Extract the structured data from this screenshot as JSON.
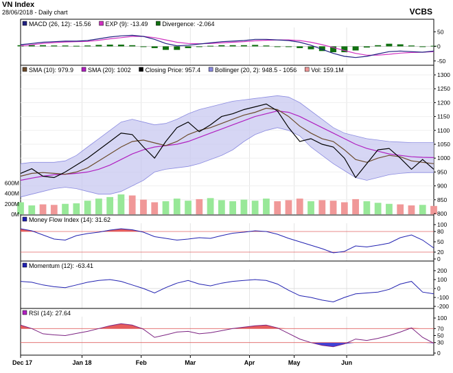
{
  "header": {
    "title": "VN Index",
    "subtitle": "28/06/2018 - Daily chart",
    "brand": "VCBS"
  },
  "colors": {
    "sma10": "#6b4a2b",
    "sma20": "#b020c0",
    "close": "#000000",
    "bollinger_fill": "#c8c8f0",
    "bollinger_line": "#8a8ae0",
    "volume_up": "#98e898",
    "volume_down": "#f09898",
    "macd": "#202080",
    "exp": "#d030c0",
    "divergence": "#107010",
    "indicator_line": "#2020b0",
    "overbought_fill": "#e04040",
    "oversold_fill": "#2020d0",
    "ref_line": "#e06060"
  },
  "chart_data": [
    {
      "id": "macd",
      "type": "line",
      "legend": [
        {
          "label": "MACD (26, 12): -15.56",
          "color": "#202080"
        },
        {
          "label": "EXP (9): -13.49",
          "color": "#d030c0"
        },
        {
          "label": "Divergence: -2.064",
          "color": "#107010"
        }
      ],
      "ylim": [
        -60,
        60
      ],
      "yticks": [
        50,
        0,
        -50
      ],
      "series": [
        {
          "name": "MACD (26, 12)",
          "values": [
            6,
            10,
            14,
            16,
            18,
            18,
            20,
            26,
            32,
            36,
            38,
            34,
            24,
            10,
            2,
            4,
            8,
            12,
            16,
            18,
            20,
            24,
            24,
            22,
            20,
            14,
            4,
            -10,
            -24,
            -34,
            -38,
            -34,
            -26,
            -18,
            -16,
            -18,
            -20,
            -16
          ]
        },
        {
          "name": "EXP (9)",
          "values": [
            2,
            6,
            10,
            13,
            15,
            16,
            17,
            21,
            26,
            30,
            34,
            34,
            30,
            22,
            14,
            10,
            9,
            10,
            12,
            14,
            16,
            19,
            21,
            22,
            22,
            20,
            14,
            6,
            -4,
            -14,
            -24,
            -30,
            -30,
            -27,
            -23,
            -21,
            -20,
            -18
          ]
        },
        {
          "name": "Divergence",
          "values": [
            4,
            4,
            4,
            3,
            3,
            2,
            3,
            5,
            6,
            6,
            4,
            0,
            -6,
            -12,
            -12,
            -6,
            -1,
            2,
            4,
            4,
            4,
            5,
            3,
            0,
            -2,
            -6,
            -10,
            -16,
            -20,
            -20,
            -14,
            -4,
            4,
            9,
            7,
            3,
            0,
            2
          ]
        }
      ]
    },
    {
      "id": "price",
      "type": "line",
      "legend": [
        {
          "label": "SMA (10): 979.9",
          "color": "#6b4a2b"
        },
        {
          "label": "SMA (20): 1002",
          "color": "#b020c0"
        },
        {
          "label": "Closing Price: 957.4",
          "color": "#000000"
        },
        {
          "label": "Bollinger (20, 2): 948.5 - 1056",
          "color": "#8a8ae0"
        },
        {
          "label": "Vol: 159.1M",
          "color": "#f09898"
        }
      ],
      "ylim": [
        800,
        1300
      ],
      "yticks": [
        1300,
        1250,
        1200,
        1150,
        1100,
        1050,
        1000,
        950,
        900,
        850,
        800
      ],
      "volume_ticks": [
        "600M",
        "400M",
        "200M",
        "0M"
      ],
      "volume_max_m": 800,
      "series": [
        {
          "name": "Closing Price",
          "values": [
            945,
            962,
            935,
            930,
            950,
            975,
            1000,
            1030,
            1060,
            1090,
            1085,
            1040,
            1000,
            1060,
            1110,
            1130,
            1095,
            1120,
            1150,
            1160,
            1175,
            1185,
            1195,
            1170,
            1110,
            1060,
            1070,
            1050,
            1040,
            1000,
            930,
            980,
            1030,
            1035,
            1000,
            960,
            995,
            960
          ]
        },
        {
          "name": "SMA (10)",
          "values": [
            935,
            945,
            948,
            945,
            942,
            950,
            965,
            990,
            1015,
            1040,
            1060,
            1065,
            1055,
            1045,
            1060,
            1085,
            1100,
            1110,
            1125,
            1140,
            1155,
            1165,
            1180,
            1175,
            1150,
            1115,
            1090,
            1070,
            1060,
            1030,
            995,
            985,
            1000,
            1010,
            1005,
            990,
            985,
            980
          ]
        },
        {
          "name": "SMA (20)",
          "values": [
            920,
            928,
            935,
            940,
            942,
            945,
            950,
            960,
            975,
            995,
            1015,
            1030,
            1040,
            1045,
            1050,
            1060,
            1075,
            1090,
            1105,
            1120,
            1135,
            1150,
            1160,
            1170,
            1165,
            1150,
            1130,
            1110,
            1090,
            1070,
            1050,
            1035,
            1025,
            1015,
            1010,
            1005,
            1003,
            1002
          ]
        },
        {
          "name": "Bollinger Upper",
          "values": [
            980,
            985,
            985,
            985,
            990,
            1010,
            1040,
            1070,
            1100,
            1130,
            1140,
            1130,
            1120,
            1125,
            1140,
            1160,
            1175,
            1185,
            1195,
            1205,
            1210,
            1215,
            1220,
            1225,
            1220,
            1200,
            1170,
            1140,
            1110,
            1090,
            1080,
            1070,
            1065,
            1060,
            1058,
            1056,
            1056,
            1056
          ]
        },
        {
          "name": "Bollinger Lower",
          "values": [
            860,
            870,
            880,
            890,
            895,
            890,
            880,
            870,
            870,
            880,
            900,
            920,
            950,
            960,
            965,
            970,
            980,
            995,
            1010,
            1030,
            1060,
            1085,
            1100,
            1110,
            1100,
            1080,
            1040,
            1010,
            980,
            955,
            930,
            920,
            930,
            940,
            945,
            948,
            948,
            948
          ]
        },
        {
          "name": "Volume (M)",
          "values": [
            230,
            170,
            190,
            180,
            200,
            210,
            260,
            300,
            330,
            380,
            360,
            280,
            230,
            250,
            300,
            260,
            290,
            310,
            270,
            250,
            280,
            260,
            300,
            250,
            270,
            300,
            250,
            270,
            260,
            230,
            290,
            250,
            220,
            200,
            190,
            170,
            180,
            160
          ]
        }
      ]
    },
    {
      "id": "mfi",
      "type": "line",
      "legend": [
        {
          "label": "Money Flow Index (14): 31.62",
          "color": "#2020b0"
        }
      ],
      "ylim": [
        0,
        100
      ],
      "yticks": [
        100,
        80,
        50,
        20,
        0
      ],
      "levels": [
        80,
        20
      ],
      "series": [
        {
          "name": "Money Flow Index (14)",
          "values": [
            88,
            82,
            70,
            58,
            55,
            68,
            74,
            78,
            84,
            88,
            85,
            78,
            65,
            60,
            55,
            58,
            62,
            60,
            68,
            75,
            78,
            82,
            80,
            72,
            60,
            50,
            40,
            30,
            18,
            22,
            38,
            35,
            40,
            46,
            62,
            70,
            55,
            32
          ]
        }
      ]
    },
    {
      "id": "momentum",
      "type": "line",
      "legend": [
        {
          "label": "Momentum (12): -63.41",
          "color": "#2020b0"
        }
      ],
      "ylim": [
        -200,
        200
      ],
      "yticks": [
        200,
        100,
        0,
        -100,
        -200
      ],
      "series": [
        {
          "name": "Momentum (12)",
          "values": [
            80,
            70,
            40,
            20,
            10,
            40,
            70,
            90,
            100,
            80,
            40,
            0,
            -50,
            10,
            60,
            90,
            50,
            30,
            60,
            80,
            90,
            100,
            90,
            50,
            -20,
            -80,
            -100,
            -130,
            -150,
            -100,
            -60,
            -50,
            -40,
            -10,
            50,
            80,
            -40,
            -60
          ]
        }
      ]
    },
    {
      "id": "rsi",
      "type": "line",
      "legend": [
        {
          "label": "RSI (14): 27.64",
          "color": "#b020c0"
        }
      ],
      "ylim": [
        0,
        100
      ],
      "yticks": [
        100,
        70,
        50,
        30,
        0
      ],
      "levels": [
        70,
        30
      ],
      "series": [
        {
          "name": "RSI (14)",
          "values": [
            80,
            70,
            55,
            52,
            50,
            56,
            62,
            70,
            78,
            84,
            80,
            68,
            45,
            52,
            60,
            62,
            55,
            58,
            64,
            70,
            74,
            78,
            80,
            72,
            56,
            40,
            30,
            22,
            18,
            26,
            40,
            36,
            42,
            50,
            60,
            72,
            45,
            28
          ]
        }
      ]
    }
  ],
  "x_axis": {
    "labels": [
      "Dec 17",
      "Jan 18",
      "Feb",
      "Mar",
      "Apr",
      "May",
      "Jun"
    ],
    "label_index": [
      0,
      5.5,
      10.8,
      15.2,
      20.5,
      24.5,
      29.2
    ]
  }
}
